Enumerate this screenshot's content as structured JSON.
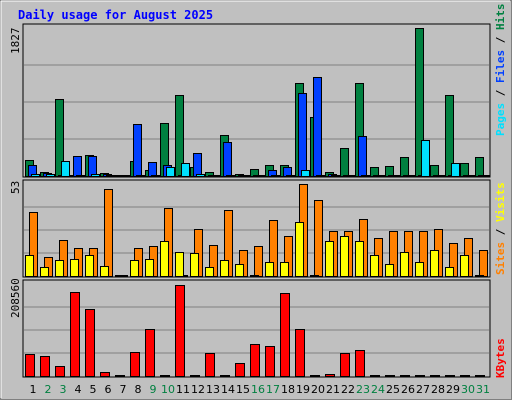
{
  "chart_data": [
    {
      "type": "bar",
      "title": "Daily usage for August 2025",
      "categories": [
        "1",
        "2",
        "3",
        "4",
        "5",
        "6",
        "7",
        "8",
        "9",
        "10",
        "11",
        "12",
        "13",
        "14",
        "15",
        "16",
        "17",
        "18",
        "19",
        "20",
        "21",
        "22",
        "23",
        "24",
        "25",
        "26",
        "27",
        "28",
        "29",
        "30",
        "31"
      ],
      "weekend_days": [
        "2",
        "3",
        "9",
        "10",
        "16",
        "17",
        "23",
        "24",
        "30",
        "31"
      ],
      "ymax_label": "1827",
      "ylim": [
        0,
        1827
      ],
      "series": [
        {
          "name": "Hits",
          "color": "#008040",
          "values": [
            195,
            55,
            950,
            0,
            260,
            35,
            15,
            190,
            80,
            660,
            1000,
            110,
            50,
            500,
            20,
            85,
            130,
            140,
            1150,
            730,
            45,
            350,
            1150,
            110,
            120,
            230,
            1825,
            130,
            1000,
            160,
            230
          ]
        },
        {
          "name": "Files",
          "color": "#0040ff",
          "values": [
            130,
            40,
            0,
            250,
            245,
            30,
            0,
            640,
            170,
            140,
            0,
            280,
            0,
            420,
            0,
            0,
            70,
            110,
            1030,
            1220,
            30,
            0,
            490,
            0,
            0,
            0,
            0,
            0,
            0,
            0,
            0
          ]
        },
        {
          "name": "Pages",
          "color": "#00e0ff",
          "values": [
            30,
            20,
            180,
            0,
            30,
            0,
            0,
            0,
            0,
            110,
            160,
            30,
            0,
            0,
            0,
            0,
            0,
            0,
            80,
            0,
            15,
            0,
            0,
            0,
            0,
            0,
            450,
            0,
            160,
            0,
            0
          ]
        }
      ],
      "legend": [
        "Pages",
        "Files",
        "Hits"
      ],
      "grid": true
    },
    {
      "type": "bar",
      "categories": [
        "1",
        "2",
        "3",
        "4",
        "5",
        "6",
        "7",
        "8",
        "9",
        "10",
        "11",
        "12",
        "13",
        "14",
        "15",
        "16",
        "17",
        "18",
        "19",
        "20",
        "21",
        "22",
        "23",
        "24",
        "25",
        "26",
        "27",
        "28",
        "29",
        "30",
        "31"
      ],
      "ymax_label": "53",
      "ylim": [
        0,
        53
      ],
      "series": [
        {
          "name": "Visits",
          "color": "#ff8000",
          "values": [
            37,
            11,
            21,
            16,
            16,
            50,
            0,
            16,
            17,
            39,
            0,
            27,
            18,
            38,
            15,
            17,
            32,
            23,
            53,
            44,
            26,
            26,
            33,
            22,
            26,
            26,
            26,
            27,
            19,
            22,
            15
          ]
        },
        {
          "name": "Sites",
          "color": "#ffff00",
          "values": [
            12,
            5,
            9,
            10,
            12,
            6,
            0,
            9,
            10,
            20,
            14,
            13,
            5,
            9,
            7,
            0,
            8,
            8,
            31,
            0,
            20,
            23,
            20,
            12,
            7,
            14,
            8,
            15,
            5,
            12,
            0
          ]
        }
      ],
      "legend": [
        "Sites",
        "Visits"
      ],
      "grid": true
    },
    {
      "type": "bar",
      "categories": [
        "1",
        "2",
        "3",
        "4",
        "5",
        "6",
        "7",
        "8",
        "9",
        "10",
        "11",
        "12",
        "13",
        "14",
        "15",
        "16",
        "17",
        "18",
        "19",
        "20",
        "21",
        "22",
        "23",
        "24",
        "25",
        "26",
        "27",
        "28",
        "29",
        "30",
        "31"
      ],
      "ymax_label": "208560",
      "ylim": [
        0,
        208560
      ],
      "series": [
        {
          "name": "KBytes",
          "color": "#ff0000",
          "values": [
            50000,
            45000,
            22000,
            190000,
            152000,
            10000,
            0,
            55000,
            107000,
            0,
            207000,
            0,
            53000,
            0,
            30000,
            72000,
            67000,
            188000,
            106000,
            0,
            5000,
            52000,
            60000,
            0,
            0,
            0,
            0,
            0,
            0,
            0,
            0
          ]
        }
      ],
      "legend": [
        "KBytes"
      ],
      "grid": true
    }
  ]
}
